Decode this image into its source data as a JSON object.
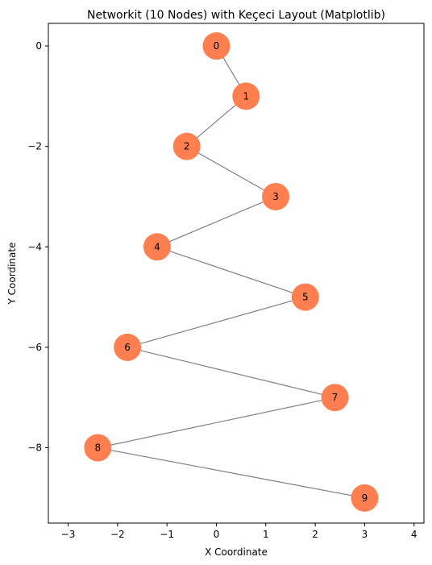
{
  "chart_data": {
    "type": "network",
    "title": "Networkit (10 Nodes) with Keçeci Layout (Matplotlib)",
    "xlabel": "X Coordinate",
    "ylabel": "Y Coordinate",
    "xlim": [
      -3.4,
      4.2
    ],
    "ylim": [
      -9.5,
      0.45
    ],
    "xticks": [
      -3,
      -2,
      -1,
      0,
      1,
      2,
      3,
      4
    ],
    "yticks": [
      0,
      -2,
      -4,
      -6,
      -8
    ],
    "grid": false,
    "node_color": "#FF7F50",
    "edge_color": "#808080",
    "nodes": [
      {
        "id": "0",
        "x": 0.0,
        "y": 0
      },
      {
        "id": "1",
        "x": 0.6,
        "y": -1
      },
      {
        "id": "2",
        "x": -0.6,
        "y": -2
      },
      {
        "id": "3",
        "x": 1.2,
        "y": -3
      },
      {
        "id": "4",
        "x": -1.2,
        "y": -4
      },
      {
        "id": "5",
        "x": 1.8,
        "y": -5
      },
      {
        "id": "6",
        "x": -1.8,
        "y": -6
      },
      {
        "id": "7",
        "x": 2.4,
        "y": -7
      },
      {
        "id": "8",
        "x": -2.4,
        "y": -8
      },
      {
        "id": "9",
        "x": 3.0,
        "y": -9
      }
    ],
    "edges": [
      [
        0,
        1
      ],
      [
        1,
        2
      ],
      [
        2,
        3
      ],
      [
        3,
        4
      ],
      [
        4,
        5
      ],
      [
        5,
        6
      ],
      [
        6,
        7
      ],
      [
        7,
        8
      ],
      [
        8,
        9
      ]
    ]
  }
}
